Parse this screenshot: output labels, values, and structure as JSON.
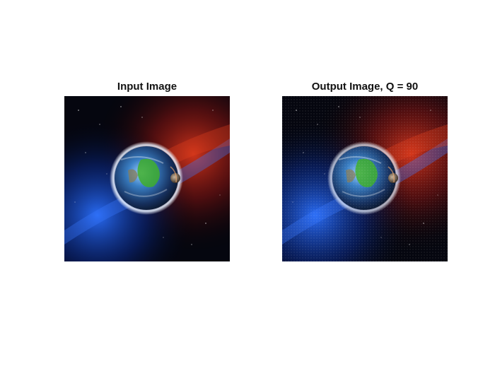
{
  "panels": [
    {
      "title": "Input Image",
      "image": "earth-in-space",
      "quality": null
    },
    {
      "title": "Output Image, Q = 90",
      "image": "earth-in-space-compressed",
      "quality": 90
    }
  ],
  "colors": {
    "background": "#ffffff",
    "space_dark": "#05060f",
    "nebula_red": "#c4241a",
    "nebula_blue": "#1a5cff",
    "planet_ocean": "#2a6fb5",
    "planet_land": "#3fae2c"
  }
}
